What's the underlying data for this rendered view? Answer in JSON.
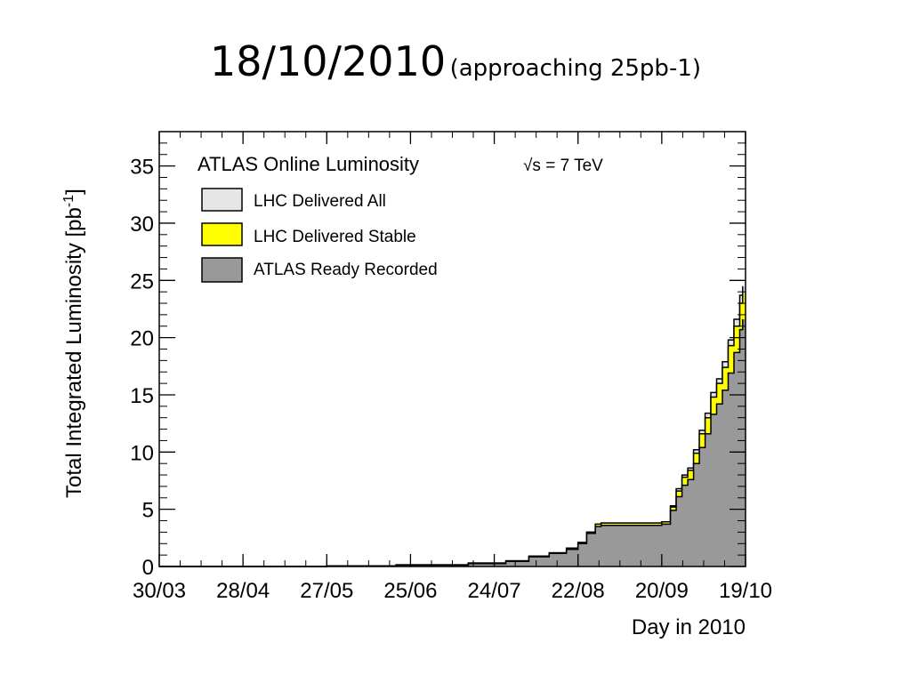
{
  "slide": {
    "title": "18/10/2010",
    "subtitle": "(approaching 25pb-1)"
  },
  "chart_data": {
    "type": "area",
    "title": "ATLAS Online Luminosity",
    "energy_label": "√s = 7 TeV",
    "xlabel": "Day in 2010",
    "ylabel": "Total Integrated Luminosity [pb",
    "ylabel_sup": "-1",
    "ylabel_close": "]",
    "x_ticks": [
      "30/03",
      "28/04",
      "27/05",
      "25/06",
      "24/07",
      "22/08",
      "20/09",
      "19/10"
    ],
    "xlim": [
      "30/03",
      "19/10"
    ],
    "y_ticks": [
      0,
      5,
      10,
      15,
      20,
      25,
      30,
      35
    ],
    "ylim": [
      0,
      38
    ],
    "grid": false,
    "legend_position": "top-left",
    "x_dates": [
      "30/03",
      "28/04",
      "27/05",
      "20/06",
      "15/07",
      "28/07",
      "05/08",
      "12/08",
      "18/08",
      "22/08",
      "25/08",
      "28/08",
      "30/08",
      "10/09",
      "20/09",
      "23/09",
      "25/09",
      "27/09",
      "29/09",
      "01/10",
      "03/10",
      "05/10",
      "07/10",
      "09/10",
      "11/10",
      "13/10",
      "15/10",
      "17/10",
      "18/10"
    ],
    "series": [
      {
        "name": "LHC Delivered All",
        "color": "#e6e6e6",
        "values": [
          0,
          0,
          0.05,
          0.15,
          0.3,
          0.5,
          0.9,
          1.2,
          1.6,
          2.1,
          3.0,
          3.7,
          3.8,
          3.8,
          3.9,
          5.3,
          6.8,
          8.0,
          8.6,
          10.2,
          11.9,
          13.4,
          15.2,
          16.4,
          17.9,
          19.8,
          21.6,
          23.7,
          24.5
        ]
      },
      {
        "name": "LHC Delivered Stable",
        "color": "#ffff00",
        "values": [
          0,
          0,
          0.05,
          0.15,
          0.3,
          0.5,
          0.9,
          1.2,
          1.6,
          2.1,
          3.0,
          3.7,
          3.8,
          3.8,
          3.9,
          5.2,
          6.6,
          7.8,
          8.4,
          9.9,
          11.6,
          13.0,
          14.8,
          16.0,
          17.4,
          19.3,
          21.0,
          23.0,
          23.8
        ]
      },
      {
        "name": "ATLAS Ready Recorded",
        "color": "#999999",
        "values": [
          0,
          0,
          0.05,
          0.12,
          0.25,
          0.45,
          0.85,
          1.15,
          1.5,
          2.0,
          2.9,
          3.5,
          3.6,
          3.6,
          3.7,
          4.9,
          6.1,
          7.1,
          7.6,
          9.0,
          10.4,
          11.6,
          13.3,
          14.2,
          15.4,
          16.9,
          18.7,
          20.7,
          21.6
        ]
      }
    ]
  }
}
